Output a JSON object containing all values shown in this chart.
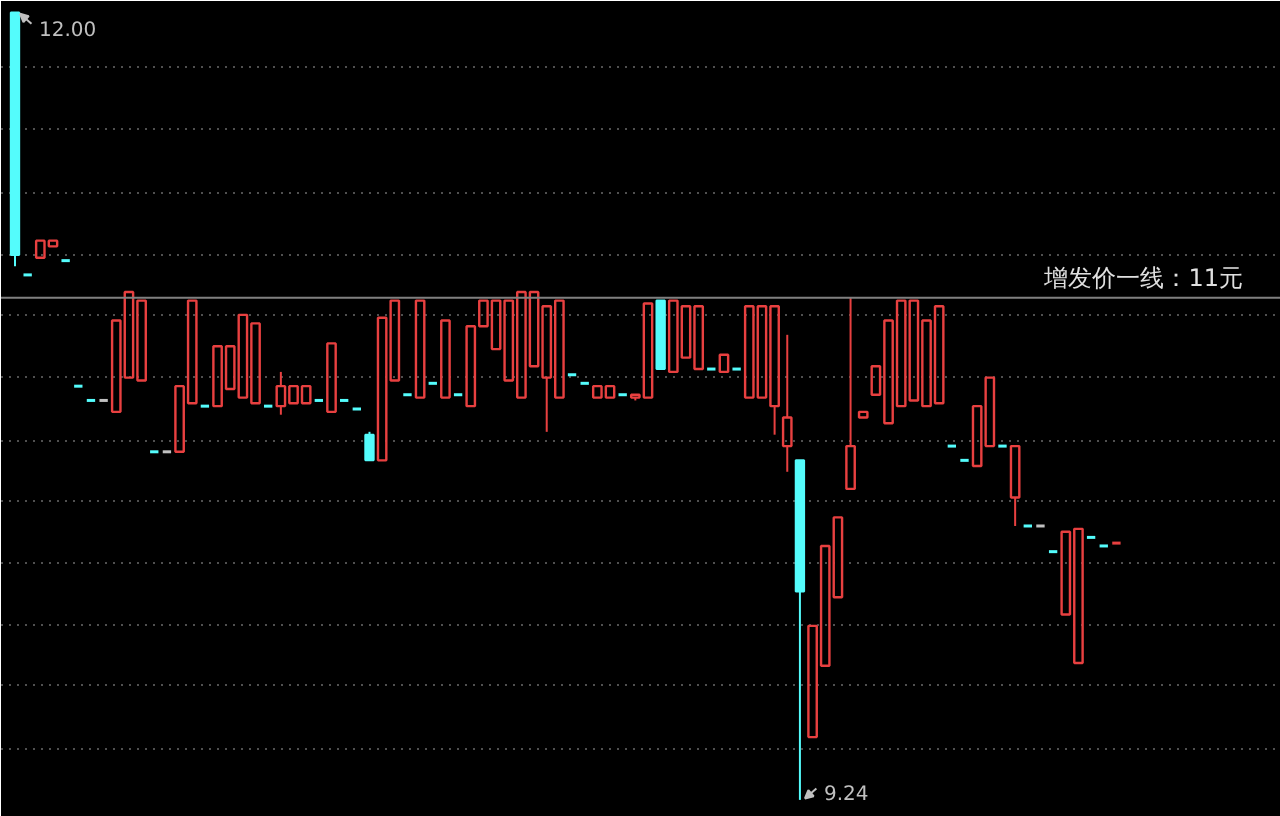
{
  "chart_data": {
    "type": "candlestick",
    "categories": [
      null,
      null,
      null,
      null,
      null,
      null,
      null,
      null,
      null,
      null,
      null,
      null,
      null,
      null,
      null,
      null,
      null,
      null,
      null,
      null,
      null,
      null,
      null,
      null,
      null,
      null,
      null,
      null,
      null,
      null,
      null,
      null,
      null,
      null,
      null,
      null,
      null,
      null,
      null,
      null,
      null,
      null,
      null,
      null,
      null,
      null,
      null,
      null,
      null,
      null,
      null,
      null,
      null,
      null,
      null,
      null,
      null,
      null,
      null,
      null,
      null,
      null,
      null,
      null,
      null,
      null,
      null,
      null,
      null,
      null,
      null,
      null,
      null,
      null,
      null,
      null,
      null,
      null,
      null,
      null,
      null,
      null,
      null,
      null,
      null,
      null,
      null,
      null
    ],
    "ohlc": [
      [
        12.0,
        12.0,
        11.11,
        11.15
      ],
      [
        11.08,
        11.08,
        11.08,
        11.08
      ],
      [
        11.14,
        11.2,
        11.14,
        11.2
      ],
      [
        11.18,
        11.2,
        11.18,
        11.2
      ],
      [
        11.13,
        11.13,
        11.13,
        11.13
      ],
      [
        10.69,
        10.69,
        10.69,
        10.69
      ],
      [
        10.64,
        10.64,
        10.64,
        10.64
      ],
      [
        10.64,
        10.64,
        10.64,
        10.64
      ],
      [
        10.6,
        10.92,
        10.6,
        10.92
      ],
      [
        10.72,
        11.02,
        10.72,
        11.02
      ],
      [
        10.71,
        10.99,
        10.71,
        10.99
      ],
      [
        10.46,
        10.46,
        10.46,
        10.46
      ],
      [
        10.46,
        10.46,
        10.46,
        10.46
      ],
      [
        10.46,
        10.69,
        10.46,
        10.69
      ],
      [
        10.63,
        10.99,
        10.63,
        10.99
      ],
      [
        10.62,
        10.62,
        10.62,
        10.62
      ],
      [
        10.62,
        10.83,
        10.62,
        10.83
      ],
      [
        10.68,
        10.83,
        10.68,
        10.83
      ],
      [
        10.65,
        10.94,
        10.65,
        10.94
      ],
      [
        10.63,
        10.91,
        10.63,
        10.91
      ],
      [
        10.62,
        10.62,
        10.62,
        10.62
      ],
      [
        10.62,
        10.74,
        10.59,
        10.69
      ],
      [
        10.63,
        10.69,
        10.63,
        10.69
      ],
      [
        10.63,
        10.69,
        10.63,
        10.69
      ],
      [
        10.64,
        10.64,
        10.64,
        10.64
      ],
      [
        10.6,
        10.84,
        10.6,
        10.84
      ],
      [
        10.64,
        10.64,
        10.64,
        10.64
      ],
      [
        10.61,
        10.61,
        10.61,
        10.61
      ],
      [
        10.52,
        10.53,
        10.43,
        10.43
      ],
      [
        10.43,
        10.93,
        10.43,
        10.93
      ],
      [
        10.71,
        10.99,
        10.71,
        10.99
      ],
      [
        10.66,
        10.66,
        10.66,
        10.66
      ],
      [
        10.65,
        10.99,
        10.65,
        10.99
      ],
      [
        10.7,
        10.7,
        10.7,
        10.7
      ],
      [
        10.65,
        10.92,
        10.65,
        10.92
      ],
      [
        10.66,
        10.66,
        10.66,
        10.66
      ],
      [
        10.62,
        10.9,
        10.62,
        10.9
      ],
      [
        10.9,
        10.99,
        10.9,
        10.99
      ],
      [
        10.82,
        10.99,
        10.82,
        10.99
      ],
      [
        10.71,
        10.99,
        10.71,
        10.99
      ],
      [
        10.65,
        11.02,
        10.65,
        11.02
      ],
      [
        10.76,
        11.02,
        10.76,
        11.02
      ],
      [
        10.72,
        10.97,
        10.53,
        10.97
      ],
      [
        10.65,
        10.99,
        10.65,
        10.99
      ],
      [
        10.73,
        10.73,
        10.73,
        10.73
      ],
      [
        10.7,
        10.7,
        10.7,
        10.7
      ],
      [
        10.65,
        10.69,
        10.65,
        10.69
      ],
      [
        10.65,
        10.69,
        10.65,
        10.69
      ],
      [
        10.66,
        10.66,
        10.66,
        10.66
      ],
      [
        10.65,
        10.66,
        10.64,
        10.66
      ],
      [
        10.65,
        10.98,
        10.65,
        10.98
      ],
      [
        10.99,
        10.99,
        10.75,
        10.75
      ],
      [
        10.74,
        10.99,
        10.74,
        10.99
      ],
      [
        10.79,
        10.97,
        10.79,
        10.97
      ],
      [
        10.75,
        10.97,
        10.75,
        10.97
      ],
      [
        10.75,
        10.75,
        10.75,
        10.75
      ],
      [
        10.74,
        10.8,
        10.74,
        10.8
      ],
      [
        10.75,
        10.75,
        10.75,
        10.75
      ],
      [
        10.65,
        10.97,
        10.65,
        10.97
      ],
      [
        10.65,
        10.97,
        10.65,
        10.97
      ],
      [
        10.62,
        10.97,
        10.52,
        10.97
      ],
      [
        10.48,
        10.87,
        10.39,
        10.58
      ],
      [
        10.43,
        10.43,
        9.24,
        9.97
      ],
      [
        9.46,
        9.85,
        9.46,
        9.85
      ],
      [
        9.71,
        10.13,
        9.71,
        10.13
      ],
      [
        9.95,
        10.23,
        9.95,
        10.23
      ],
      [
        10.33,
        11.0,
        10.33,
        10.48
      ],
      [
        10.58,
        10.6,
        10.58,
        10.6
      ],
      [
        10.66,
        10.76,
        10.66,
        10.76
      ],
      [
        10.56,
        10.92,
        10.56,
        10.92
      ],
      [
        10.62,
        10.99,
        10.62,
        10.99
      ],
      [
        10.64,
        10.99,
        10.64,
        10.99
      ],
      [
        10.62,
        10.92,
        10.62,
        10.92
      ],
      [
        10.63,
        10.97,
        10.63,
        10.97
      ],
      [
        10.48,
        10.48,
        10.48,
        10.48
      ],
      [
        10.43,
        10.43,
        10.43,
        10.43
      ],
      [
        10.41,
        10.62,
        10.41,
        10.62
      ],
      [
        10.48,
        10.72,
        10.48,
        10.72
      ],
      [
        10.48,
        10.48,
        10.48,
        10.48
      ],
      [
        10.3,
        10.48,
        10.2,
        10.48
      ],
      [
        10.2,
        10.2,
        10.2,
        10.2
      ],
      [
        10.2,
        10.2,
        10.2,
        10.2
      ],
      [
        10.11,
        10.11,
        10.11,
        10.11
      ],
      [
        9.89,
        10.18,
        9.89,
        10.18
      ],
      [
        9.72,
        10.19,
        9.72,
        10.19
      ],
      [
        10.16,
        10.16,
        10.16,
        10.16
      ],
      [
        10.13,
        10.13,
        10.13,
        10.13
      ],
      [
        10.14,
        10.14,
        10.14,
        10.14
      ]
    ],
    "ylim": [
      9.18,
      12.04
    ],
    "yticks": [
      {
        "value": 11.81,
        "label": null
      },
      {
        "value": 11.59,
        "label": null
      },
      {
        "value": 11.37,
        "label": null
      },
      {
        "value": 11.15,
        "label": null
      },
      {
        "value": 10.94,
        "label": null
      },
      {
        "value": 10.72,
        "label": null
      },
      {
        "value": 10.5,
        "label": null
      },
      {
        "value": 10.29,
        "label": null
      },
      {
        "value": 10.07,
        "label": null
      },
      {
        "value": 9.85,
        "label": null
      },
      {
        "value": 9.64,
        "label": null
      },
      {
        "value": 9.42,
        "label": null
      }
    ],
    "grid": "y",
    "tick_labels": false,
    "ref_lines": [
      {
        "axis": "y",
        "value": 11,
        "label": "增发价一线：11元",
        "color": "#808080"
      }
    ],
    "annotations": [
      "12.00",
      "9.24"
    ]
  }
}
